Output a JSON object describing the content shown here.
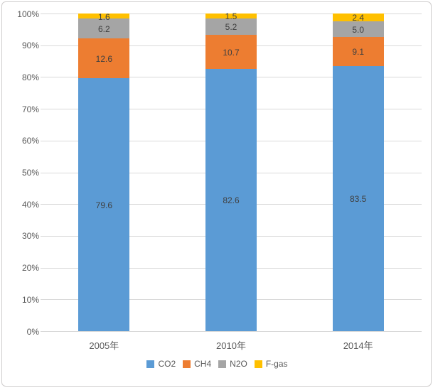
{
  "chart_data": {
    "type": "bar",
    "variant": "stacked-100-percent-column",
    "title": "",
    "xlabel": "",
    "ylabel": "",
    "categories": [
      "2005年",
      "2010年",
      "2014年"
    ],
    "series": [
      {
        "name": "CO2",
        "color": "#5b9bd5",
        "values": [
          79.6,
          82.6,
          83.5
        ]
      },
      {
        "name": "CH4",
        "color": "#ed7d31",
        "values": [
          12.6,
          10.7,
          9.1
        ]
      },
      {
        "name": "N2O",
        "color": "#a5a5a5",
        "values": [
          6.2,
          5.2,
          5.0
        ]
      },
      {
        "name": "F-gas",
        "color": "#ffc000",
        "values": [
          1.6,
          1.5,
          2.4
        ]
      }
    ],
    "data_labels": [
      [
        "79.6",
        "82.6",
        "83.5"
      ],
      [
        "12.6",
        "10.7",
        "9.1"
      ],
      [
        "6.2",
        "5.2",
        "5.0"
      ],
      [
        "1.6",
        "1.5",
        "2.4"
      ]
    ],
    "y_axis": {
      "min": 0,
      "max": 100,
      "step": 10,
      "tick_labels": [
        "0%",
        "10%",
        "20%",
        "30%",
        "40%",
        "50%",
        "60%",
        "70%",
        "80%",
        "90%",
        "100%"
      ]
    },
    "legend": {
      "position": "bottom",
      "entries": [
        "CO2",
        "CH4",
        "N2O",
        "F-gas"
      ]
    },
    "grid": true,
    "colors": {
      "gridline": "#d9d9d9",
      "axis_line": "#d9d9d9",
      "axis_text": "#595959",
      "data_label_text": "#404040",
      "chart_border": "#d0cece",
      "background": "#ffffff"
    }
  }
}
